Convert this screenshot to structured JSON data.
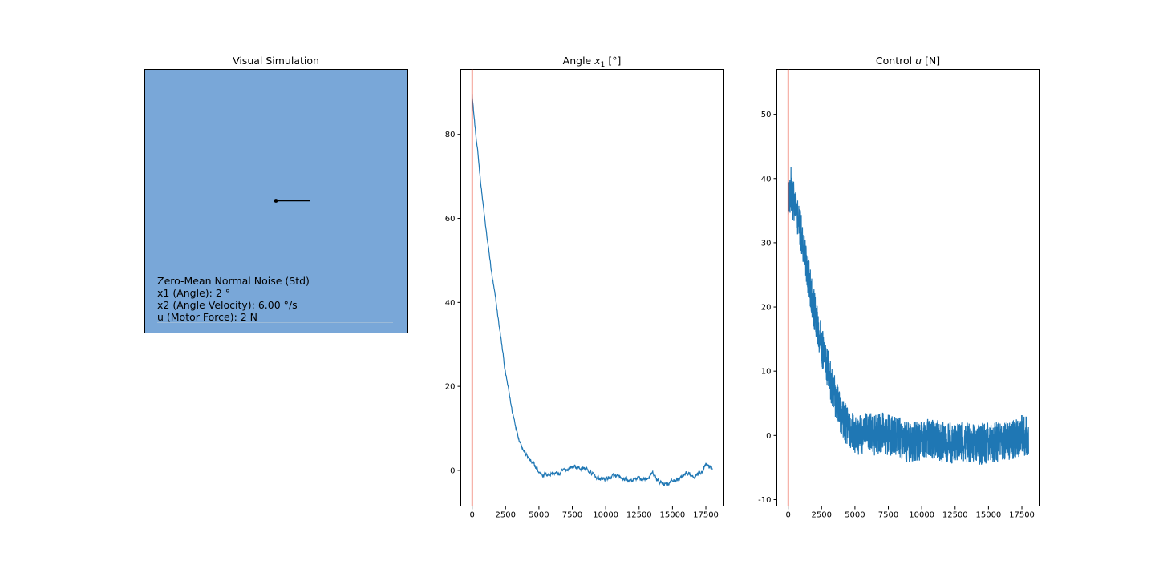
{
  "figure": {
    "colors": {
      "background": "#ffffff",
      "sim_bg": "#79a7d8",
      "series": "#1f77b4",
      "marker": "#e8412c",
      "axes": "#000000"
    }
  },
  "panels": {
    "sim": {
      "title": "Visual Simulation",
      "noise_lines": [
        "Zero-Mean Normal Noise (Std)",
        "x1 (Angle): 2 °",
        "x2 (Angle Velocity): 6.00 °/s",
        "u (Motor Force): 2 N"
      ],
      "pendulum_angle_deg": 0
    }
  },
  "chart_data": [
    {
      "id": "angle",
      "type": "line",
      "title_prefix": "Angle ",
      "title_var": "x",
      "title_sub": "1",
      "title_suffix": " [°]",
      "xlim": [
        -850,
        18850
      ],
      "ylim": [
        -8.5,
        95.5
      ],
      "xticks": [
        0,
        2500,
        5000,
        7500,
        10000,
        12500,
        15000,
        17500
      ],
      "yticks": [
        0,
        20,
        40,
        60,
        80
      ],
      "marker_x": 0,
      "x_end": 18000,
      "noise_amp": 0.7,
      "series": [
        {
          "x": [
            0,
            100,
            300,
            600,
            1000,
            1500,
            2000,
            2500,
            3000,
            3500,
            4000,
            4500,
            5000,
            5500,
            6000,
            6500,
            7000,
            7500,
            8000,
            8500,
            9000,
            9500,
            10000,
            10500,
            11000,
            11500,
            12000,
            12500,
            13000,
            13500,
            14000,
            14500,
            15000,
            15500,
            16000,
            16500,
            17000,
            17500,
            18000
          ],
          "values": [
            90,
            86,
            79,
            70,
            58,
            46,
            35,
            23,
            14,
            8,
            4,
            1.5,
            -0.5,
            -1,
            -0.5,
            -1,
            0,
            1,
            0.5,
            0.5,
            -1,
            -2,
            -2,
            -1.5,
            -2,
            -2.5,
            -2.5,
            -2,
            -2,
            -1,
            -3,
            -3,
            -2.5,
            -2,
            -1.5,
            -1,
            -0.5,
            1,
            0.5
          ]
        }
      ]
    },
    {
      "id": "control",
      "type": "line",
      "title_prefix": "Control ",
      "title_var": "u",
      "title_sub": "",
      "title_suffix": " [N]",
      "xlim": [
        -850,
        18850
      ],
      "ylim": [
        -11,
        57
      ],
      "xticks": [
        0,
        2500,
        5000,
        7500,
        10000,
        12500,
        15000,
        17500
      ],
      "yticks": [
        -10,
        0,
        10,
        20,
        30,
        40,
        50
      ],
      "marker_x": 0,
      "x_end": 18000,
      "noise_amp": 3.2,
      "series": [
        {
          "x": [
            0,
            200,
            500,
            1000,
            1500,
            2000,
            2500,
            3000,
            3500,
            4000,
            4500,
            5000,
            5500,
            6000,
            6500,
            7000,
            7500,
            8000,
            8500,
            9000,
            9500,
            10000,
            10500,
            11000,
            11500,
            12000,
            12500,
            13000,
            13500,
            14000,
            14500,
            15000,
            15500,
            16000,
            16500,
            17000,
            17500,
            18000
          ],
          "values": [
            37,
            38,
            36,
            31,
            25,
            19,
            14,
            10,
            6,
            3,
            1,
            0,
            0,
            0.5,
            0,
            0.5,
            0,
            0,
            -0.5,
            -1,
            -1,
            -1,
            -0.5,
            -0.5,
            -1,
            -1,
            -1.5,
            -1,
            -1,
            -1,
            -1.5,
            -1,
            -1,
            -1,
            -1,
            -0.5,
            0,
            0
          ]
        }
      ]
    }
  ]
}
